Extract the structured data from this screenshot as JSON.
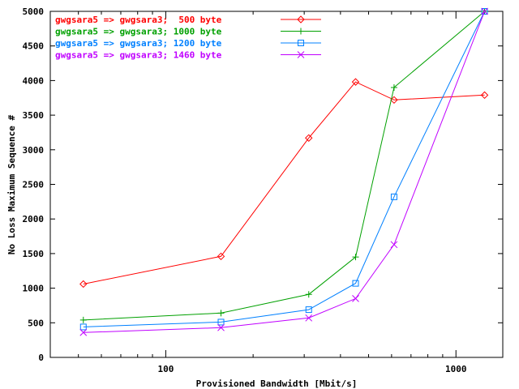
{
  "chart_data": {
    "type": "line",
    "xscale": "log",
    "xlim": [
      40,
      1450
    ],
    "ylim": [
      0,
      5000
    ],
    "xlabel": "Provisioned Bandwidth [Mbit/s]",
    "ylabel": "No Loss Maximum Sequence #",
    "xticks": [
      100,
      1000
    ],
    "xtick_labels": [
      "100",
      "1000"
    ],
    "yticks": [
      0,
      500,
      1000,
      1500,
      2000,
      2500,
      3000,
      3500,
      4000,
      4500,
      5000
    ],
    "ytick_labels": [
      "0",
      "500",
      "1000",
      "1500",
      "2000",
      "2500",
      "3000",
      "3500",
      "4000",
      "4500",
      "5000"
    ],
    "legend_position": "top-left",
    "grid": false,
    "series": [
      {
        "name": "gwgsara5 => gwgsara3;  500 byte",
        "color": "#ff0000",
        "marker": "diamond",
        "x": [
          52,
          155,
          311,
          451,
          612,
          1255
        ],
        "y": [
          1060,
          1460,
          3170,
          3980,
          3720,
          3790
        ]
      },
      {
        "name": "gwgsara5 => gwgsara3; 1000 byte",
        "color": "#00a000",
        "marker": "plus",
        "x": [
          52,
          155,
          311,
          451,
          612,
          1255
        ],
        "y": [
          540,
          640,
          910,
          1450,
          3900,
          5000
        ]
      },
      {
        "name": "gwgsara5 => gwgsara3; 1200 byte",
        "color": "#0080ff",
        "marker": "square",
        "x": [
          52,
          155,
          311,
          451,
          612,
          1255
        ],
        "y": [
          440,
          510,
          690,
          1070,
          2320,
          5000
        ]
      },
      {
        "name": "gwgsara5 => gwgsara3; 1460 byte",
        "color": "#c000ff",
        "marker": "cross",
        "x": [
          52,
          155,
          311,
          451,
          612,
          1255
        ],
        "y": [
          360,
          430,
          570,
          850,
          1630,
          5000
        ]
      }
    ]
  }
}
